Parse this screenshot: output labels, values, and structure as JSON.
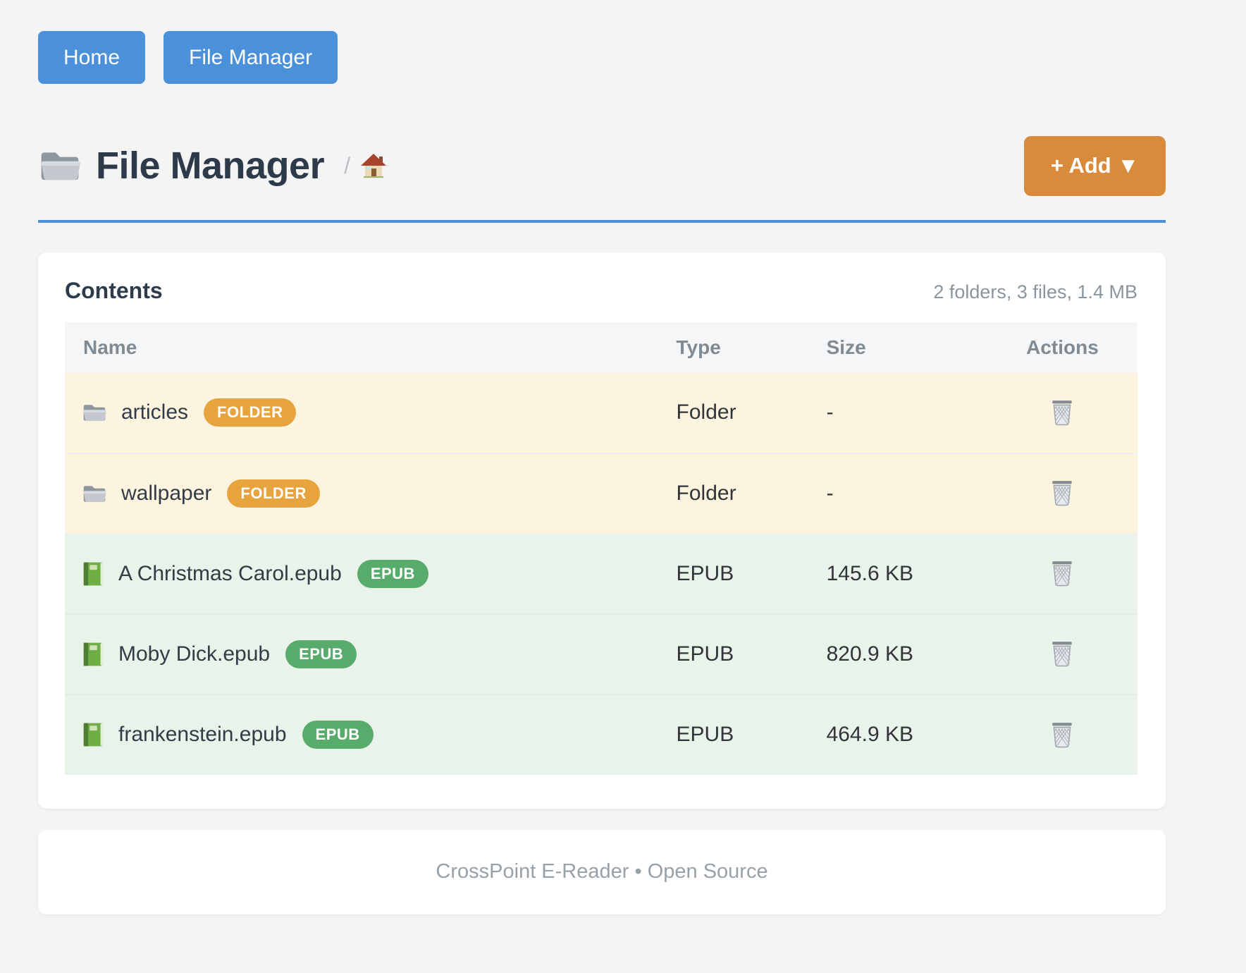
{
  "nav": {
    "buttons": [
      {
        "label": "Home"
      },
      {
        "label": "File Manager"
      }
    ]
  },
  "header": {
    "title": "File Manager",
    "title_icon": "folder-icon",
    "breadcrumb_separator": "/",
    "breadcrumb_home_icon": "house-icon",
    "add_button_label": "+ Add ▼"
  },
  "contents_card": {
    "heading": "Contents",
    "summary": "2 folders, 3 files, 1.4 MB",
    "table": {
      "columns": [
        "Name",
        "Type",
        "Size",
        "Actions"
      ],
      "rows": [
        {
          "name": "articles",
          "kind": "folder",
          "icon": "folder-icon",
          "badge": "FOLDER",
          "type": "Folder",
          "size": "-",
          "action_icon": "trash-icon"
        },
        {
          "name": "wallpaper",
          "kind": "folder",
          "icon": "folder-icon",
          "badge": "FOLDER",
          "type": "Folder",
          "size": "-",
          "action_icon": "trash-icon"
        },
        {
          "name": "A Christmas Carol.epub",
          "kind": "epub",
          "icon": "book-icon",
          "badge": "EPUB",
          "type": "EPUB",
          "size": "145.6 KB",
          "action_icon": "trash-icon"
        },
        {
          "name": "Moby Dick.epub",
          "kind": "epub",
          "icon": "book-icon",
          "badge": "EPUB",
          "type": "EPUB",
          "size": "820.9 KB",
          "action_icon": "trash-icon"
        },
        {
          "name": "frankenstein.epub",
          "kind": "epub",
          "icon": "book-icon",
          "badge": "EPUB",
          "type": "EPUB",
          "size": "464.9 KB",
          "action_icon": "trash-icon"
        }
      ]
    }
  },
  "footer": {
    "text": "CrossPoint E-Reader • Open Source"
  },
  "colors": {
    "page_background": "#f4f4f5",
    "nav_button_blue": "#4a91da",
    "title_rule_blue": "#4a90d9",
    "add_button_orange": "#d98b3b",
    "folder_badge_orange": "#e7a33c",
    "epub_badge_green": "#57ac6b",
    "folder_row_background": "#fcf4df",
    "epub_row_background": "#e9f3e9",
    "table_header_background": "#f5f6f8"
  }
}
